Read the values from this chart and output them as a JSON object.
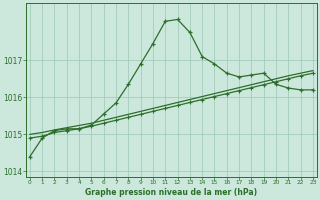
{
  "hours": [
    0,
    1,
    2,
    3,
    4,
    5,
    6,
    7,
    8,
    9,
    10,
    11,
    12,
    13,
    14,
    15,
    16,
    17,
    18,
    19,
    20,
    21,
    22,
    23
  ],
  "pressure_main": [
    1014.4,
    1014.9,
    1015.1,
    1015.15,
    1015.15,
    1015.25,
    1015.55,
    1015.85,
    1016.35,
    1016.9,
    1017.45,
    1018.05,
    1018.1,
    1017.75,
    1017.1,
    1016.9,
    1016.65,
    1016.55,
    1016.6,
    1016.65,
    1016.35,
    1016.25,
    1016.2,
    1016.2
  ],
  "pressure_trend1": [
    1014.9,
    1014.95,
    1015.05,
    1015.1,
    1015.15,
    1015.22,
    1015.3,
    1015.38,
    1015.46,
    1015.54,
    1015.62,
    1015.7,
    1015.78,
    1015.86,
    1015.94,
    1016.02,
    1016.1,
    1016.18,
    1016.26,
    1016.34,
    1016.42,
    1016.5,
    1016.58,
    1016.65
  ],
  "pressure_trend2": [
    1015.0,
    1015.05,
    1015.12,
    1015.18,
    1015.24,
    1015.3,
    1015.38,
    1015.46,
    1015.54,
    1015.62,
    1015.7,
    1015.78,
    1015.86,
    1015.94,
    1016.02,
    1016.1,
    1016.18,
    1016.26,
    1016.34,
    1016.42,
    1016.5,
    1016.58,
    1016.65,
    1016.72
  ],
  "line_color": "#2d6e2d",
  "bg_color": "#cce8dc",
  "grid_color": "#9cc8b4",
  "title": "Graphe pression niveau de la mer (hPa)",
  "ylim": [
    1013.85,
    1018.55
  ],
  "yticks": [
    1014,
    1015,
    1016,
    1017
  ],
  "xlim": [
    -0.3,
    23.3
  ]
}
